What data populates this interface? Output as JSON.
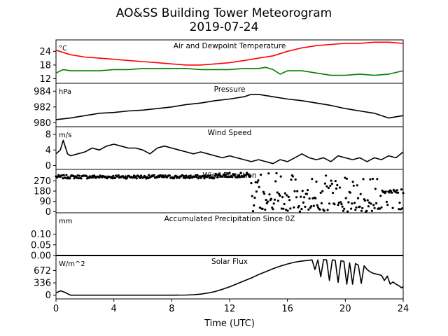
{
  "title": "AO&SS Building Tower Meteorogram",
  "subtitle": "2019-07-24",
  "colors": {
    "temperature": "#ff0000",
    "dewpoint": "#008000",
    "line": "#000000"
  },
  "chart_data": [
    {
      "type": "line",
      "panel_title": "Air and Dewpoint Temperature",
      "unit_label": "°C",
      "ylim": [
        10,
        29
      ],
      "yticks": [
        12,
        18,
        24
      ],
      "series": [
        {
          "x": [
            0,
            1,
            2,
            3,
            4,
            5,
            6,
            7,
            8,
            9,
            10,
            11,
            12,
            13,
            14,
            15,
            16,
            17,
            18,
            19,
            20,
            21,
            22,
            23,
            24
          ],
          "values": [
            24.5,
            22.5,
            21.5,
            21,
            20.5,
            20,
            19.5,
            19,
            18.5,
            18,
            18,
            18.5,
            19,
            20,
            21,
            22,
            24,
            25.5,
            26.5,
            27,
            27.5,
            27.5,
            28,
            28,
            27.5
          ]
        },
        {
          "x": [
            0,
            0.5,
            1,
            2,
            3,
            4,
            5,
            6,
            7,
            8,
            9,
            10,
            11,
            12,
            13,
            14,
            14.5,
            15,
            15.5,
            16,
            17,
            18,
            19,
            20,
            21,
            22,
            23,
            24
          ],
          "values": [
            14.5,
            16,
            15.5,
            15.5,
            15.5,
            16,
            16,
            16.5,
            16.5,
            16.5,
            16.5,
            16,
            16,
            16,
            16.5,
            16.5,
            17,
            16,
            14,
            15.5,
            15.5,
            14.5,
            13.5,
            13.5,
            14,
            13.5,
            14,
            15.5
          ]
        }
      ]
    },
    {
      "type": "line",
      "panel_title": "Pressure",
      "unit_label": "hPa",
      "ylim": [
        979.5,
        985
      ],
      "yticks": [
        980,
        982,
        984
      ],
      "series": [
        {
          "x": [
            0,
            1,
            2,
            3,
            4,
            5,
            6,
            7,
            8,
            9,
            10,
            11,
            12,
            13,
            13.5,
            14,
            15,
            16,
            17,
            18,
            19,
            20,
            21,
            22,
            23,
            24
          ],
          "values": [
            980.4,
            980.6,
            980.9,
            981.2,
            981.3,
            981.5,
            981.6,
            981.8,
            982,
            982.3,
            982.5,
            982.8,
            983,
            983.3,
            983.6,
            983.6,
            983.3,
            983,
            982.8,
            982.5,
            982.2,
            981.8,
            981.5,
            981.2,
            980.6,
            980.9
          ]
        }
      ]
    },
    {
      "type": "line",
      "panel_title": "Wind Speed",
      "unit_label": "m/s",
      "ylim": [
        -1,
        10
      ],
      "yticks": [
        0,
        4,
        8
      ],
      "series": [
        {
          "x": [
            0,
            0.3,
            0.5,
            0.8,
            1,
            1.5,
            2,
            2.5,
            3,
            3.5,
            4,
            4.5,
            5,
            5.5,
            6,
            6.5,
            7,
            7.5,
            8,
            8.5,
            9,
            9.5,
            10,
            10.5,
            11,
            11.5,
            12,
            12.5,
            13,
            13.5,
            14,
            14.5,
            15,
            15.5,
            16,
            16.5,
            17,
            17.5,
            18,
            18.5,
            19,
            19.5,
            20,
            20.5,
            21,
            21.5,
            22,
            22.5,
            23,
            23.5,
            24
          ],
          "values": [
            3,
            4,
            6.5,
            3,
            2.5,
            3,
            3.5,
            4.5,
            4,
            5,
            5.5,
            5,
            4.5,
            4.5,
            4,
            3,
            4.5,
            5,
            4.5,
            4,
            3.5,
            3,
            3.5,
            3,
            2.5,
            2,
            2.5,
            2,
            1.5,
            1,
            1.5,
            1,
            0.5,
            1.5,
            1,
            2,
            3,
            2,
            1.5,
            2,
            1,
            2.5,
            2,
            1.5,
            2,
            1,
            2,
            1.5,
            2.5,
            2,
            3.5
          ]
        }
      ]
    },
    {
      "type": "scatter",
      "panel_title": "Wind Direction",
      "unit_label": "",
      "ylim": [
        -10,
        370
      ],
      "yticks": [
        0,
        90,
        180,
        270
      ]
    },
    {
      "type": "line",
      "panel_title": "Accumulated Precipitation Since 0Z",
      "unit_label": "mm",
      "ylim": [
        0,
        0.2
      ],
      "yticks": [
        0.0,
        0.05,
        0.1
      ],
      "series": [
        {
          "x": [
            0,
            24
          ],
          "values": [
            0,
            0
          ]
        }
      ]
    },
    {
      "type": "line",
      "panel_title": "Solar Flux",
      "unit_label": "W/m^2",
      "ylim": [
        -100,
        1080
      ],
      "yticks": [
        0,
        336,
        672
      ],
      "series": [
        {
          "x": [
            0,
            0.3,
            0.6,
            1,
            1.5,
            2,
            3,
            4,
            5,
            6,
            7,
            8,
            9,
            9.5,
            10,
            10.5,
            11,
            11.5,
            12,
            12.5,
            13,
            13.5,
            14,
            14.5,
            15,
            15.5,
            16,
            16.5,
            17,
            17.5,
            17.7,
            17.9,
            18.1,
            18.3,
            18.5,
            18.7,
            18.9,
            19.1,
            19.3,
            19.5,
            19.7,
            19.9,
            20.1,
            20.3,
            20.5,
            20.7,
            20.9,
            21.1,
            21.3,
            21.5,
            21.7,
            21.9,
            22.1,
            22.3,
            22.5,
            22.7,
            22.9,
            23.1,
            23.3,
            23.5,
            23.7,
            23.9,
            24
          ],
          "values": [
            60,
            120,
            80,
            0,
            0,
            0,
            0,
            0,
            0,
            0,
            0,
            0,
            5,
            15,
            30,
            60,
            100,
            160,
            230,
            310,
            390,
            470,
            560,
            640,
            720,
            790,
            850,
            900,
            930,
            950,
            960,
            700,
            960,
            500,
            970,
            960,
            400,
            960,
            950,
            350,
            940,
            920,
            300,
            880,
            300,
            860,
            820,
            320,
            800,
            700,
            640,
            600,
            580,
            560,
            540,
            400,
            520,
            300,
            360,
            300,
            260,
            200,
            240
          ]
        }
      ]
    }
  ],
  "x_axis": {
    "xlim": [
      0,
      24
    ],
    "ticks": [
      0,
      4,
      8,
      12,
      16,
      20,
      24
    ],
    "label": "Time (UTC)"
  }
}
